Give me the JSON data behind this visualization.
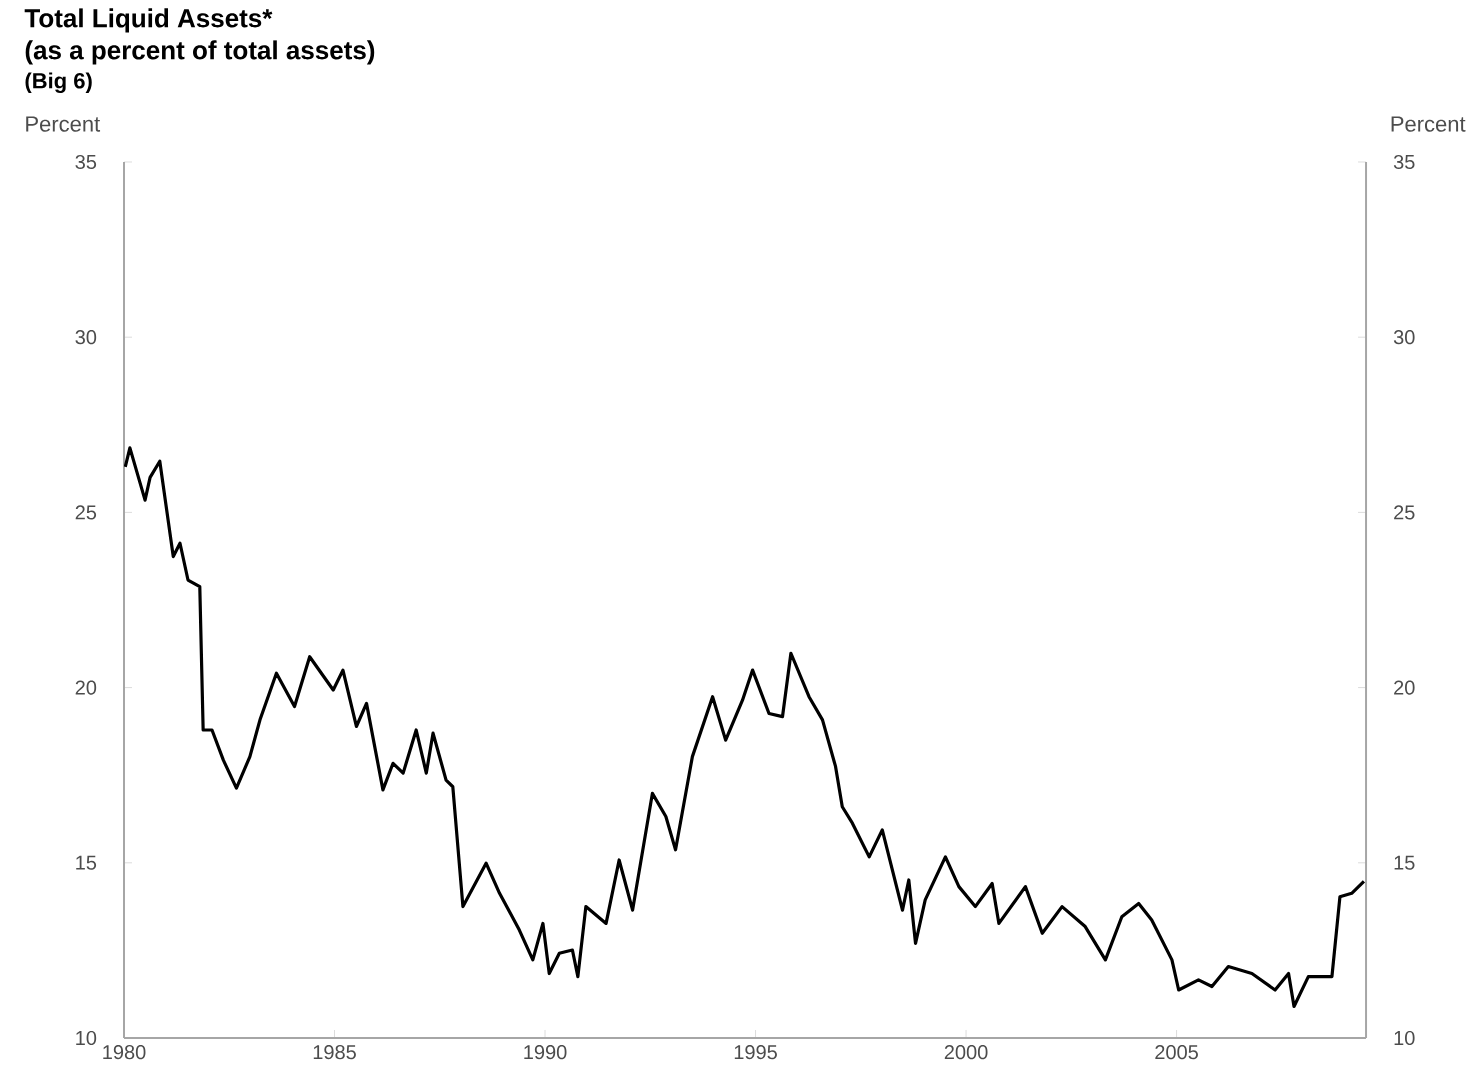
{
  "chart_data": {
    "type": "line",
    "title": "Total Liquid Assets*",
    "subtitle": "(as a percent of total assets)",
    "annotations": [
      "(Big 6)"
    ],
    "ylabel": "Percent",
    "y2label": "Percent",
    "x": [
      1980.03,
      1980.14,
      1980.5,
      1980.62,
      1980.85,
      1981.17,
      1981.33,
      1981.52,
      1981.8,
      1981.88,
      1982.09,
      1982.36,
      1982.67,
      1982.99,
      1983.23,
      1983.62,
      1984.05,
      1984.41,
      1984.97,
      1985.2,
      1985.52,
      1985.76,
      1986.15,
      1986.39,
      1986.63,
      1986.94,
      1987.18,
      1987.34,
      1987.65,
      1987.81,
      1988.05,
      1988.6,
      1988.92,
      1989.39,
      1989.71,
      1989.95,
      1990.1,
      1990.34,
      1990.65,
      1990.78,
      1990.97,
      1991.45,
      1991.76,
      1992.08,
      1992.55,
      1992.87,
      1993.1,
      1993.5,
      1993.98,
      1994.29,
      1994.69,
      1994.93,
      1995.32,
      1995.64,
      1995.84,
      1996.27,
      1996.59,
      1996.9,
      1997.06,
      1997.3,
      1997.7,
      1998.01,
      1998.49,
      1998.64,
      1998.8,
      1999.03,
      1999.51,
      1999.83,
      2000.22,
      2000.62,
      2000.78,
      2001.41,
      2001.81,
      2002.28,
      2002.83,
      2003.31,
      2003.7,
      2004.1,
      2004.41,
      2004.89,
      2005.05,
      2005.52,
      2005.84,
      2006.23,
      2006.79,
      2007.34,
      2007.66,
      2007.79,
      2008.13,
      2008.69,
      2008.88,
      2009.16,
      2009.45
    ],
    "series": [
      {
        "color": "#000000",
        "values": [
          26.3,
          26.84,
          25.35,
          26.0,
          26.46,
          23.74,
          24.12,
          23.07,
          22.88,
          18.79,
          18.79,
          17.93,
          17.13,
          18.03,
          19.08,
          20.41,
          19.46,
          20.88,
          19.93,
          20.5,
          18.89,
          19.55,
          17.08,
          17.84,
          17.56,
          18.79,
          17.56,
          18.7,
          17.36,
          17.17,
          13.75,
          14.99,
          14.13,
          13.08,
          12.23,
          13.27,
          11.84,
          12.42,
          12.51,
          11.75,
          13.75,
          13.27,
          15.08,
          13.65,
          16.98,
          16.32,
          15.37,
          18.03,
          19.74,
          18.5,
          19.64,
          20.5,
          19.26,
          19.17,
          20.98,
          19.74,
          19.08,
          17.75,
          16.6,
          16.13,
          15.17,
          15.94,
          13.65,
          14.51,
          12.7,
          13.94,
          15.17,
          14.32,
          13.75,
          14.41,
          13.27,
          14.32,
          12.99,
          13.75,
          13.18,
          12.23,
          13.46,
          13.84,
          13.37,
          12.23,
          11.37,
          11.66,
          11.47,
          12.04,
          11.84,
          11.37,
          11.84,
          10.9,
          11.75,
          11.75,
          14.03,
          14.13,
          14.47
        ]
      }
    ],
    "xlim": [
      1980,
      2009.5
    ],
    "xticks": [
      1980,
      1985,
      1990,
      1995,
      2000,
      2005
    ],
    "ylim": [
      10,
      35
    ],
    "yticks": [
      10,
      15,
      20,
      25,
      30,
      35
    ],
    "y2lim": [
      10,
      35
    ],
    "y2ticks": [
      10,
      15,
      20,
      25,
      30,
      35
    ],
    "grid": false,
    "marker": "none",
    "line_style": "solid"
  }
}
